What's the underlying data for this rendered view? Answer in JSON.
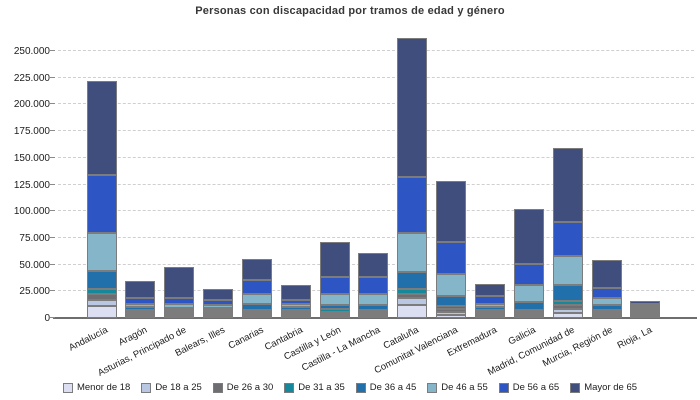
{
  "title": "Personas con discapacidad por tramos de edad y género",
  "colors": {
    "axis": "#6e6e6e",
    "grid": "#cfcfcf",
    "segment_border": "#7c7c7c",
    "title_text": "#373737"
  },
  "chart_data": {
    "type": "bar",
    "stacked": true,
    "title": "Personas con discapacidad por tramos de edad y género",
    "xlabel": "",
    "ylabel": "",
    "ylim": [
      0,
      262000
    ],
    "ytick_step": 25000,
    "ytick_labels": [
      "0",
      "25.000",
      "50.000",
      "75.000",
      "100.000",
      "125.000",
      "150.000",
      "175.000",
      "200.000",
      "225.000",
      "250.000"
    ],
    "grid": "horizontal-dashed",
    "legend_position": "bottom",
    "categories": [
      "Andalucía",
      "Aragón",
      "Asturias, Principado de",
      "Balears, Illes",
      "Canarias",
      "Cantabria",
      "Castilla y León",
      "Castilla - La Mancha",
      "Cataluña",
      "Comunitat Valenciana",
      "Extremadura",
      "Galicia",
      "Madrid, Comunidad de",
      "Murcia, Región de",
      "Rioja, La"
    ],
    "series": [
      {
        "name": "Menor de 18",
        "color": "#dbdff1",
        "values": [
          11200,
          1200,
          300,
          800,
          2100,
          700,
          1100,
          1600,
          12200,
          2800,
          800,
          1100,
          5000,
          1400,
          300
        ]
      },
      {
        "name": "De 18 a 25",
        "color": "#b9c7e3",
        "values": [
          5600,
          700,
          400,
          700,
          1700,
          500,
          1000,
          1500,
          6200,
          2800,
          600,
          900,
          3700,
          1100,
          300
        ]
      },
      {
        "name": "De 26 a 30",
        "color": "#6e6e72",
        "values": [
          5600,
          700,
          600,
          700,
          1500,
          600,
          1000,
          1900,
          4100,
          2800,
          700,
          1200,
          3800,
          1200,
          300
        ]
      },
      {
        "name": "De 31 a 35",
        "color": "#15889c",
        "values": [
          4700,
          900,
          500,
          900,
          2200,
          700,
          2500,
          1800,
          4700,
          2900,
          700,
          1500,
          3700,
          1300,
          400
        ]
      },
      {
        "name": "De 36 a 45",
        "color": "#2170ac",
        "values": [
          17100,
          3100,
          1300,
          2200,
          5300,
          2500,
          3800,
          5100,
          16200,
          9300,
          2800,
          7200,
          15000,
          4400,
          800
        ]
      },
      {
        "name": "De 46 a 55",
        "color": "#85b5c9",
        "values": [
          35800,
          3100,
          3500,
          2800,
          9400,
          3100,
          10000,
          10600,
          36300,
          20400,
          3200,
          15700,
          26700,
          6800,
          1000
        ]
      },
      {
        "name": "De 56 a 65",
        "color": "#2e55c4",
        "values": [
          54100,
          5700,
          5900,
          4700,
          13400,
          3800,
          15500,
          16200,
          52200,
          30300,
          7800,
          19700,
          32100,
          9400,
          1500
        ]
      },
      {
        "name": "Mayor de 65",
        "color": "#3f4e7c",
        "values": [
          88200,
          16100,
          29300,
          10300,
          19600,
          13700,
          32500,
          22400,
          130100,
          56900,
          11000,
          51200,
          69000,
          26000,
          2400
        ]
      }
    ]
  }
}
